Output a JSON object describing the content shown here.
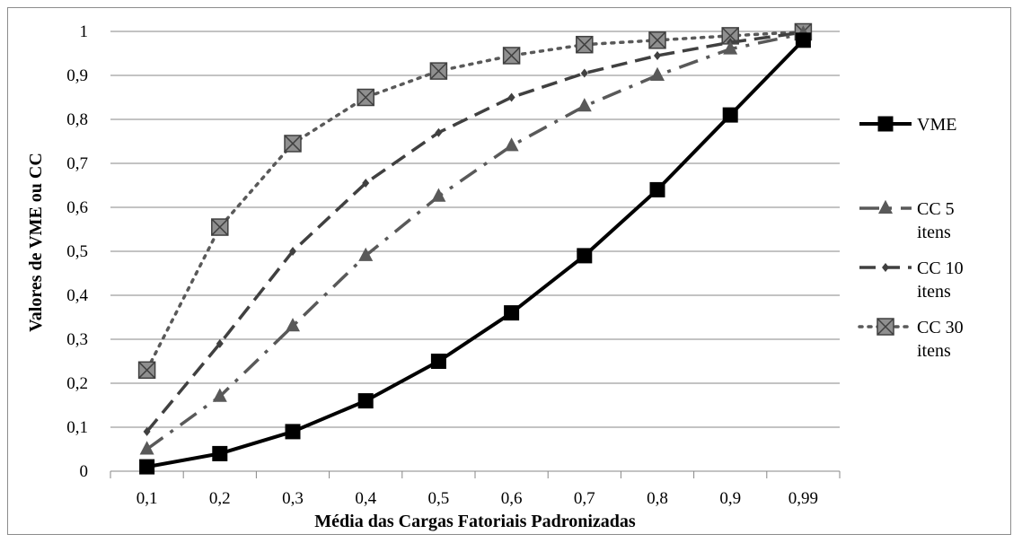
{
  "chart_data": {
    "type": "line",
    "xlabel": "Média das Cargas Fatoriais Padronizadas",
    "ylabel": "Valores de VME ou CC",
    "categories": [
      "0,1",
      "0,2",
      "0,3",
      "0,4",
      "0,5",
      "0,6",
      "0,7",
      "0,8",
      "0,9",
      "0,99"
    ],
    "ylim": [
      0,
      1
    ],
    "yticks": [
      "0",
      "0,1",
      "0,2",
      "0,3",
      "0,4",
      "0,5",
      "0,6",
      "0,7",
      "0,8",
      "0,9",
      "1"
    ],
    "grid": "horizontal",
    "legend_position": "right",
    "series": [
      {
        "name": "VME",
        "marker": "square",
        "dash": "solid",
        "color": "#000000",
        "values": [
          0.01,
          0.04,
          0.09,
          0.16,
          0.25,
          0.36,
          0.49,
          0.64,
          0.81,
          0.98
        ]
      },
      {
        "name": "CC 5 itens",
        "marker": "triangle",
        "dash": "dashdot",
        "color": "#595959",
        "values": [
          0.05,
          0.17,
          0.33,
          0.49,
          0.625,
          0.74,
          0.83,
          0.9,
          0.96,
          0.995
        ]
      },
      {
        "name": "CC 10 itens",
        "marker": "diamond",
        "dash": "dash",
        "color": "#404040",
        "values": [
          0.09,
          0.29,
          0.5,
          0.655,
          0.77,
          0.85,
          0.905,
          0.945,
          0.975,
          0.998
        ]
      },
      {
        "name": "CC 30 itens",
        "marker": "xsquare",
        "dash": "dot",
        "color": "#595959",
        "values": [
          0.23,
          0.555,
          0.745,
          0.85,
          0.91,
          0.945,
          0.97,
          0.98,
          0.99,
          0.999
        ]
      }
    ],
    "legend": [
      {
        "line1": "VME",
        "line2": ""
      },
      {
        "line1": "CC 5",
        "line2": "itens"
      },
      {
        "line1": "CC 10",
        "line2": "itens"
      },
      {
        "line1": "CC 30",
        "line2": "itens"
      }
    ]
  }
}
